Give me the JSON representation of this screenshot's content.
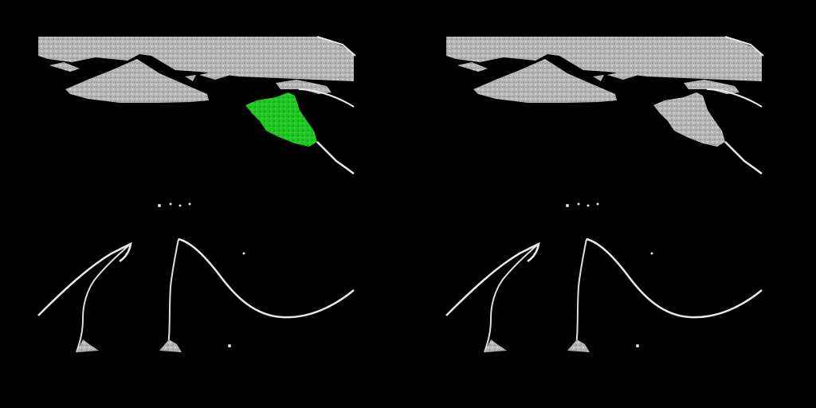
{
  "panels": [
    {
      "name": "left-panel",
      "overlay": true
    },
    {
      "name": "right-panel",
      "overlay": false
    }
  ],
  "colors": {
    "background": "#000000",
    "tissue": "#b9b9b9",
    "tissue_dark": "#8d8d8d",
    "bone_edge": "#e9e9e9",
    "mask": "#22d322",
    "mask_dark": "#18a818"
  }
}
